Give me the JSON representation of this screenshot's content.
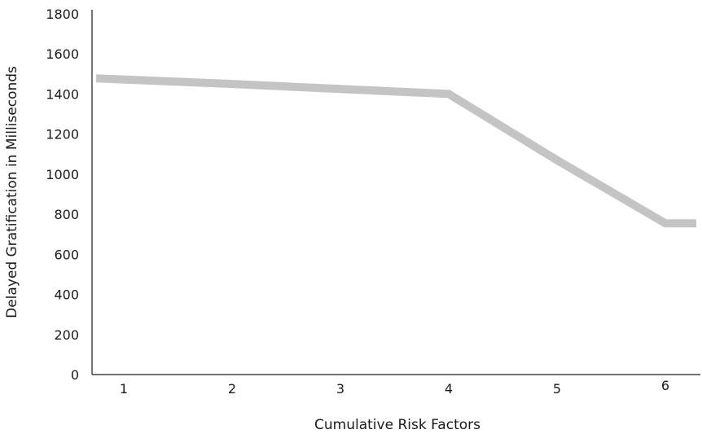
{
  "chart_data": {
    "type": "line",
    "title": "",
    "xlabel": "Cumulative Risk Factors",
    "ylabel": "Delayed Gratification in Milliseconds",
    "categories": [
      "1",
      "2",
      "3",
      "4",
      "5",
      "6"
    ],
    "x_tick_labels": [
      "1",
      "2",
      "3",
      "4",
      "5",
      "6"
    ],
    "y_tick_labels": [
      "0",
      "200",
      "400",
      "600",
      "800",
      "1000",
      "1200",
      "1400",
      "1600",
      "1800"
    ],
    "ylim": [
      0,
      1800
    ],
    "grid": false,
    "legend": "none",
    "series": [
      {
        "values": [
          1478,
          1450,
          1425,
          1400,
          1070,
          755
        ],
        "end_value": 755,
        "color": "#c4c4c4"
      }
    ]
  }
}
